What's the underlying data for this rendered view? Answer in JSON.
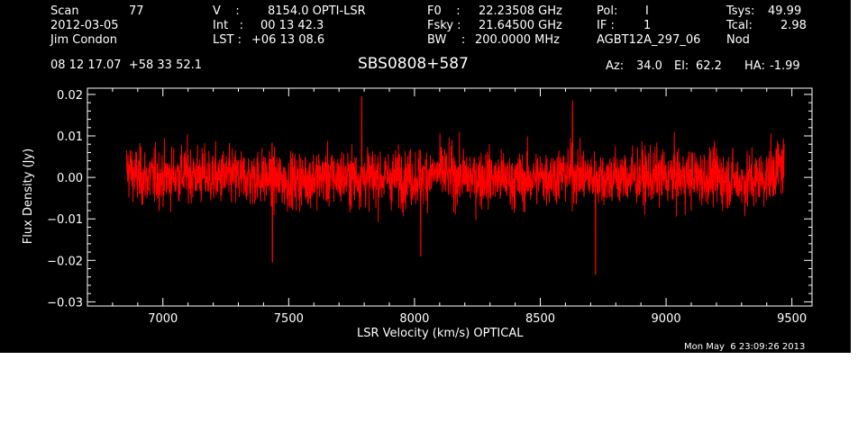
{
  "header": {
    "scan_label": "Scan",
    "scan_number": "77",
    "date": "2012-03-05",
    "observer": "Jim Condon",
    "v_label": "V    :",
    "v_value": "8154.0 OPTI-LSR",
    "int_label": "Int   :",
    "int_value": "00 13 42.3",
    "lst_label": "LST :",
    "lst_value": "+06 13 08.6",
    "f0_label": "F0    :",
    "f0_value": "22.23508 GHz",
    "fsky_label": "Fsky :",
    "fsky_value": "21.64500 GHz",
    "bw_label": "BW    :",
    "bw_value": "200.0000 MHz",
    "pol_label": "Pol:",
    "pol_value": "I",
    "if_label": "IF :",
    "if_value": "1",
    "project": "AGBT12A_297_06",
    "tsys_label": "Tsys:",
    "tsys_value": "49.99",
    "tcal_label": "Tcal:",
    "tcal_value": "2.98",
    "proc": "Nod",
    "coords": "08 12 17.07  +58 33 52.1",
    "source": "SBS0808+587",
    "az_label": "Az:",
    "az_value": "34.0",
    "el_label": "El:",
    "el_value": "62.2",
    "ha_label": "HA:",
    "ha_value": "-1.99"
  },
  "footer": {
    "timestamp": "Mon May  6 23:09:26 2013"
  },
  "colors": {
    "background": "#000000",
    "axes": "#ffffff",
    "trace": "#ff0000"
  },
  "chart_data": {
    "type": "line",
    "xlabel": "LSR Velocity (km/s) OPTICAL",
    "ylabel": "Flux Density (Jy)",
    "xlim": [
      6700,
      9580
    ],
    "ylim": [
      -0.031,
      0.0215
    ],
    "x_ticks": [
      7000,
      7500,
      8000,
      8500,
      9000,
      9500
    ],
    "x_tick_labels": [
      "7000",
      "7500",
      "8000",
      "8500",
      "9000",
      "9500"
    ],
    "y_ticks": [
      -0.03,
      -0.02,
      -0.01,
      0.0,
      0.01,
      0.02
    ],
    "y_tick_labels": [
      "−0.03",
      "−0.02",
      "−0.01",
      "0.00",
      "0.01",
      "0.02"
    ],
    "grid": false,
    "legend": "none",
    "series": [
      {
        "color": "#ff0000",
        "x_range": [
          6855,
          9470
        ],
        "noise_rms_jy": 0.0055,
        "mean_jy": 0.0,
        "x": [
          6860,
          6900,
          7000,
          7100,
          7200,
          7300,
          7400,
          7500,
          7600,
          7700,
          7800,
          7900,
          8000,
          8100,
          8200,
          8300,
          8400,
          8500,
          8600,
          8700,
          8800,
          8900,
          9000,
          9100,
          9200,
          9300,
          9400,
          9460
        ],
        "y": [
          0.002,
          0.0,
          0.0,
          0.001,
          0.0,
          0.0,
          0.0,
          -0.001,
          0.0,
          0.0,
          0.0,
          0.0,
          0.0,
          0.001,
          0.0,
          0.0,
          -0.001,
          0.0,
          0.001,
          0.0,
          0.0,
          0.0,
          0.0,
          0.0,
          0.0,
          -0.001,
          0.0,
          0.003
        ],
        "notable_points": [
          {
            "x": 7790,
            "y": 0.0195
          },
          {
            "x": 8628,
            "y": 0.0185
          },
          {
            "x": 7435,
            "y": -0.0205
          },
          {
            "x": 8720,
            "y": -0.0235
          },
          {
            "x": 8025,
            "y": -0.019
          }
        ]
      }
    ]
  }
}
